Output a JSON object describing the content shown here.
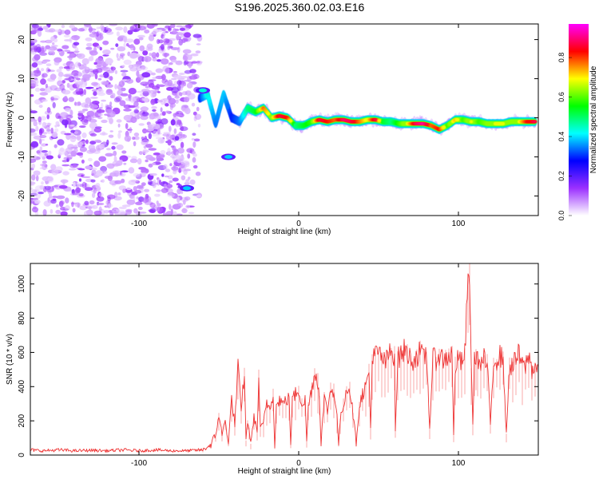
{
  "title": "S196.2025.360.02.03.E16",
  "chart_data": [
    {
      "type": "heatmap",
      "title": "S196.2025.360.02.03.E16",
      "xlabel": "Height of straight line (km)",
      "ylabel": "Frequency (Hz)",
      "xlim": [
        -168,
        150
      ],
      "ylim": [
        -25,
        24
      ],
      "x_ticks": [
        -100,
        0,
        100
      ],
      "x_tick_labels": [
        "-100",
        "0",
        "100"
      ],
      "y_ticks": [
        20,
        10,
        0,
        -10,
        -20
      ],
      "y_tick_labels": [
        "20",
        "10",
        "0",
        "-10",
        "-20"
      ],
      "colorbar": {
        "label": "Normalized spectral amplitude",
        "range": [
          0,
          0.97
        ],
        "ticks": [
          0.0,
          0.2,
          0.4,
          0.6,
          0.8
        ],
        "tick_labels": [
          "0.0",
          "0.2",
          "0.4",
          "0.6",
          "0.8"
        ],
        "colormap": [
          "#ffffff",
          "#9b30ff",
          "#0000ff",
          "#00ffff",
          "#00ff00",
          "#ffff00",
          "#ff0000",
          "#ff00ff"
        ]
      },
      "noise_region_x": [
        -168,
        -62
      ],
      "ridge": {
        "x": [
          -62,
          -57,
          -52,
          -47,
          -42,
          -37,
          -32,
          -27,
          -22,
          -17,
          -12,
          -7,
          -2,
          3,
          8,
          13,
          18,
          23,
          28,
          33,
          38,
          43,
          48,
          53,
          58,
          63,
          68,
          73,
          78,
          83,
          88,
          93,
          98,
          103,
          108,
          113,
          118,
          123,
          128,
          133,
          138,
          143,
          148
        ],
        "frequency": [
          5,
          6,
          -1.5,
          6,
          0,
          -1,
          2.5,
          1.5,
          2.5,
          0,
          0.5,
          0,
          -2,
          -2,
          -1,
          -0.5,
          -1,
          -0.5,
          -0.5,
          -1,
          -1,
          -0.5,
          -0.5,
          -1,
          -1,
          -1.5,
          -1.5,
          -1.5,
          -1.5,
          -2,
          -3,
          -2,
          -0.5,
          -0.5,
          -1,
          -1,
          -1.5,
          -1.5,
          -1.5,
          -1,
          -1,
          -1,
          -1
        ],
        "amplitude": [
          0.3,
          0.45,
          0.35,
          0.4,
          0.3,
          0.35,
          0.5,
          0.55,
          0.8,
          0.65,
          0.9,
          0.85,
          0.5,
          0.55,
          0.6,
          0.9,
          0.85,
          0.8,
          0.92,
          0.9,
          0.8,
          0.7,
          0.9,
          0.55,
          0.5,
          0.6,
          0.7,
          0.9,
          0.95,
          0.8,
          0.85,
          0.6,
          0.75,
          0.6,
          0.7,
          0.6,
          0.65,
          0.7,
          0.7,
          0.65,
          0.7,
          0.85,
          0.9
        ]
      },
      "blob_events": [
        {
          "x": -70,
          "frequency": -18,
          "amplitude": 0.4
        },
        {
          "x": -44,
          "frequency": -10,
          "amplitude": 0.4
        },
        {
          "x": -60,
          "frequency": 7,
          "amplitude": 0.45
        }
      ]
    },
    {
      "type": "line",
      "xlabel": "Height of straight line (km)",
      "ylabel": "SNR (10 * v/v)",
      "xlim": [
        -168,
        150
      ],
      "ylim": [
        0,
        1120
      ],
      "x_ticks": [
        -100,
        0,
        100
      ],
      "x_tick_labels": [
        "-100",
        "0",
        "100"
      ],
      "y_ticks": [
        0,
        200,
        400,
        600,
        800,
        1000
      ],
      "y_tick_labels": [
        "0",
        "200",
        "400",
        "600",
        "800",
        "1000"
      ],
      "series": [
        {
          "name": "SNR",
          "color": "#ee3333",
          "x": [
            -168,
            -160,
            -150,
            -140,
            -130,
            -120,
            -110,
            -100,
            -90,
            -80,
            -70,
            -60,
            -55,
            -52,
            -50,
            -48,
            -46,
            -44,
            -42,
            -40,
            -38,
            -36,
            -34,
            -33,
            -32,
            -31,
            -30,
            -28,
            -26,
            -25,
            -24,
            -22,
            -20,
            -18,
            -16,
            -15,
            -14,
            -12,
            -10,
            -8,
            -6,
            -5,
            -4,
            -2,
            0,
            2,
            4,
            5,
            6,
            8,
            10,
            12,
            13,
            14,
            16,
            18,
            20,
            22,
            24,
            25,
            26,
            28,
            30,
            32,
            34,
            36,
            38,
            40,
            42,
            44,
            45,
            46,
            48,
            50,
            52,
            54,
            56,
            58,
            60,
            60.5,
            62,
            64,
            66,
            68,
            70,
            72,
            74,
            76,
            78,
            80,
            82,
            84,
            86,
            88,
            90,
            92,
            94,
            96,
            97,
            98,
            100,
            102,
            104,
            106,
            107,
            108,
            109,
            110,
            111,
            112,
            114,
            116,
            118,
            120,
            122,
            124,
            126,
            128,
            130,
            132,
            134,
            136,
            138,
            140,
            142,
            144,
            146,
            148,
            150
          ],
          "y": [
            30,
            25,
            30,
            25,
            28,
            25,
            30,
            25,
            30,
            25,
            25,
            30,
            60,
            110,
            240,
            120,
            200,
            70,
            330,
            180,
            520,
            250,
            490,
            80,
            200,
            150,
            60,
            230,
            130,
            460,
            150,
            190,
            310,
            270,
            360,
            60,
            280,
            330,
            300,
            320,
            330,
            60,
            320,
            360,
            380,
            300,
            320,
            80,
            280,
            380,
            480,
            430,
            330,
            80,
            330,
            260,
            380,
            380,
            220,
            70,
            200,
            300,
            390,
            390,
            240,
            80,
            290,
            360,
            400,
            480,
            160,
            540,
            590,
            590,
            580,
            530,
            580,
            600,
            590,
            150,
            560,
            590,
            610,
            600,
            560,
            560,
            580,
            600,
            560,
            600,
            160,
            560,
            560,
            590,
            560,
            560,
            590,
            580,
            110,
            520,
            560,
            540,
            590,
            1000,
            1100,
            500,
            200,
            540,
            600,
            560,
            520,
            560,
            530,
            180,
            560,
            560,
            580,
            560,
            120,
            530,
            520,
            560,
            590,
            520,
            520,
            580,
            500,
            520,
            520
          ]
        }
      ]
    }
  ]
}
